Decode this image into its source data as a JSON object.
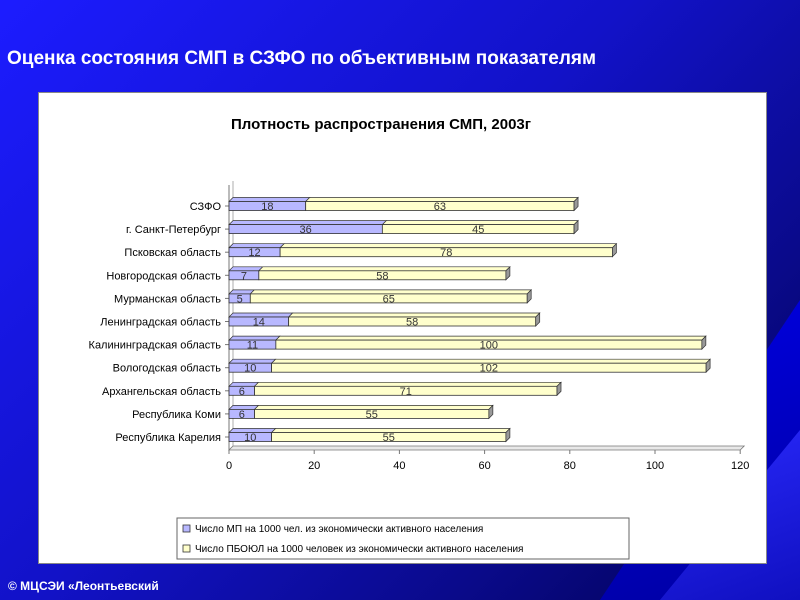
{
  "slide": {
    "title": "Оценка состояния СМП в СЗФО по объективным показателям",
    "footer": "© МЦСЭИ «Леонтьевский"
  },
  "colors": {
    "series1": "#b8b8ff",
    "series2": "#ffffcc",
    "edge": "#333333"
  },
  "chart_data": {
    "type": "bar",
    "orientation": "horizontal",
    "stacked": true,
    "title": "Плотность распространения СМП, 2003г",
    "categories": [
      "СЗФО",
      "г. Санкт-Петербург",
      "Псковская область",
      "Новгородская область",
      "Мурманская область",
      "Ленинградская область",
      "Калининградская область",
      "Вологодская область",
      "Архангельская область",
      "Республика Коми",
      "Республика Карелия"
    ],
    "series": [
      {
        "name": "Число МП на 1000 чел. из экономически активного населения",
        "values": [
          18,
          36,
          12,
          7,
          5,
          14,
          11,
          10,
          6,
          6,
          10
        ]
      },
      {
        "name": "Число ПБОЮЛ на 1000 человек из экономически активного населения",
        "values": [
          63,
          45,
          78,
          58,
          65,
          58,
          100,
          102,
          71,
          55,
          55
        ]
      }
    ],
    "xlim": [
      0,
      120
    ],
    "xticks": [
      0,
      20,
      40,
      60,
      80,
      100,
      120
    ],
    "grid": false,
    "legend": "bottom"
  }
}
